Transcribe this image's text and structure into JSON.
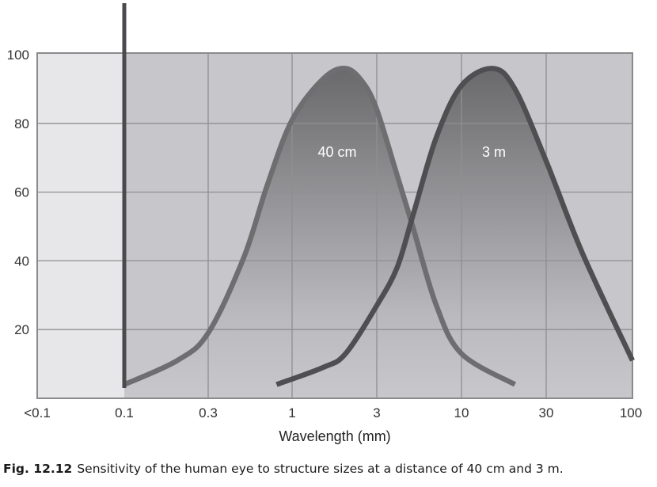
{
  "chart_data": {
    "type": "line",
    "title": "",
    "xlabel": "Wavelength (mm)",
    "ylabel": "",
    "x_scale": "log",
    "x_tick_labels": [
      "<0.1",
      "0.1",
      "0.3",
      "1",
      "3",
      "10",
      "30",
      "100"
    ],
    "y_ticks": [
      20,
      40,
      60,
      80,
      100
    ],
    "ylim": [
      0,
      100
    ],
    "grid": true,
    "marker_line_at_x": "0.1",
    "series": [
      {
        "name": "40 cm",
        "x": [
          0.1,
          0.2,
          0.3,
          0.5,
          0.7,
          1.0,
          1.5,
          2.0,
          2.5,
          3.0,
          4.0,
          5.0,
          7.0,
          10.0,
          20.0
        ],
        "y": [
          4,
          11,
          19,
          41,
          62,
          81,
          93,
          96,
          92,
          84,
          65,
          50,
          27,
          13,
          4
        ]
      },
      {
        "name": "3 m",
        "x": [
          0.8,
          1.5,
          2.0,
          3.0,
          4.0,
          5.0,
          7.0,
          10.0,
          15.0,
          20.0,
          30.0,
          50.0,
          100.0
        ],
        "y": [
          4,
          9,
          13,
          27,
          38,
          53,
          76,
          91,
          96,
          90,
          69,
          42,
          11
        ]
      }
    ]
  },
  "labels": {
    "curve1": "40 cm",
    "curve2": "3 m"
  },
  "caption": {
    "label": "Fig. 12.12",
    "text": "Sensitivity of the human eye to structure sizes at a distance of 40 cm and 3 m."
  }
}
